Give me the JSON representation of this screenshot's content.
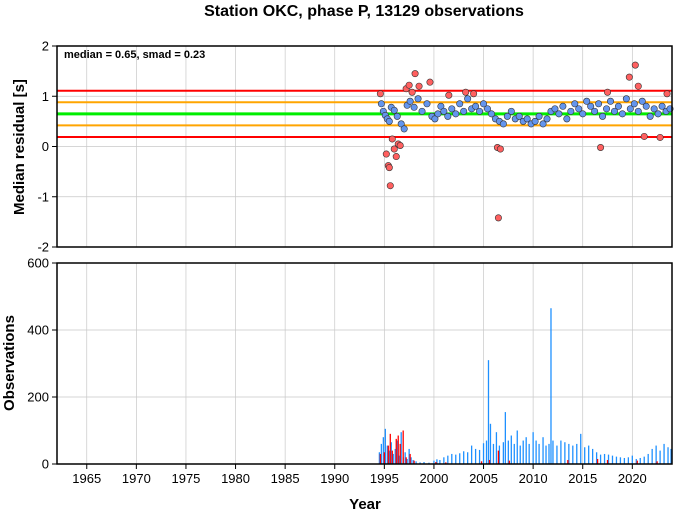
{
  "chart_data": [
    {
      "type": "scatter",
      "title": "Station OKC, phase P, 13129 observations",
      "ylabel": "Median residual [s]",
      "annotation": "median = 0.65, smad = 0.23",
      "xlim": [
        1962,
        2024
      ],
      "ylim": [
        -2,
        2
      ],
      "yticks": [
        "-2",
        "-1",
        "0",
        "1",
        "2"
      ],
      "grid": true,
      "reference_lines": [
        {
          "name": "median",
          "value": 0.65,
          "color": "#00ee00"
        },
        {
          "name": "median + 1 smad",
          "value": 0.88,
          "color": "#ffa500"
        },
        {
          "name": "median - 1 smad",
          "value": 0.42,
          "color": "#ffa500"
        },
        {
          "name": "median + 2 smad",
          "value": 1.11,
          "color": "#ff0000"
        },
        {
          "name": "median - 2 smad",
          "value": 0.19,
          "color": "#ff0000"
        }
      ],
      "series": [
        {
          "color": "#6495ed",
          "points": [
            [
              1994.7,
              0.85
            ],
            [
              1994.9,
              0.7
            ],
            [
              1995.1,
              0.62
            ],
            [
              1995.3,
              0.55
            ],
            [
              1995.5,
              0.5
            ],
            [
              1995.7,
              0.78
            ],
            [
              1996.0,
              0.72
            ],
            [
              1996.3,
              0.6
            ],
            [
              1996.7,
              0.45
            ],
            [
              1997.0,
              0.35
            ],
            [
              1997.3,
              0.82
            ],
            [
              1997.6,
              0.9
            ],
            [
              1998.0,
              0.78
            ],
            [
              1998.4,
              0.95
            ],
            [
              1998.8,
              0.7
            ],
            [
              1999.3,
              0.85
            ],
            [
              1999.8,
              0.6
            ],
            [
              2000.1,
              0.55
            ],
            [
              2000.4,
              0.65
            ],
            [
              2000.7,
              0.8
            ],
            [
              2001.0,
              0.7
            ],
            [
              2001.4,
              0.6
            ],
            [
              2001.8,
              0.75
            ],
            [
              2002.2,
              0.65
            ],
            [
              2002.6,
              0.85
            ],
            [
              2003.0,
              0.7
            ],
            [
              2003.4,
              0.95
            ],
            [
              2003.8,
              0.75
            ],
            [
              2004.2,
              0.8
            ],
            [
              2004.6,
              0.7
            ],
            [
              2005.0,
              0.85
            ],
            [
              2005.4,
              0.75
            ],
            [
              2005.8,
              0.65
            ],
            [
              2006.2,
              0.55
            ],
            [
              2006.6,
              0.5
            ],
            [
              2007.0,
              0.45
            ],
            [
              2007.4,
              0.6
            ],
            [
              2007.8,
              0.7
            ],
            [
              2008.2,
              0.55
            ],
            [
              2008.6,
              0.6
            ],
            [
              2009.0,
              0.5
            ],
            [
              2009.4,
              0.55
            ],
            [
              2009.8,
              0.45
            ],
            [
              2010.2,
              0.5
            ],
            [
              2010.6,
              0.6
            ],
            [
              2011.0,
              0.45
            ],
            [
              2011.4,
              0.55
            ],
            [
              2011.8,
              0.7
            ],
            [
              2012.2,
              0.75
            ],
            [
              2012.6,
              0.65
            ],
            [
              2013.0,
              0.8
            ],
            [
              2013.4,
              0.55
            ],
            [
              2013.8,
              0.7
            ],
            [
              2014.2,
              0.85
            ],
            [
              2014.6,
              0.75
            ],
            [
              2015.0,
              0.65
            ],
            [
              2015.4,
              0.9
            ],
            [
              2015.8,
              0.8
            ],
            [
              2016.2,
              0.7
            ],
            [
              2016.6,
              0.85
            ],
            [
              2017.0,
              0.6
            ],
            [
              2017.4,
              0.75
            ],
            [
              2017.8,
              0.9
            ],
            [
              2018.2,
              0.7
            ],
            [
              2018.6,
              0.8
            ],
            [
              2019.0,
              0.65
            ],
            [
              2019.4,
              0.95
            ],
            [
              2019.8,
              0.75
            ],
            [
              2020.2,
              0.85
            ],
            [
              2020.6,
              0.7
            ],
            [
              2021.0,
              0.9
            ],
            [
              2021.4,
              0.8
            ],
            [
              2021.8,
              0.6
            ],
            [
              2022.2,
              0.75
            ],
            [
              2022.6,
              0.65
            ],
            [
              2023.0,
              0.8
            ],
            [
              2023.4,
              0.7
            ],
            [
              2023.8,
              0.75
            ]
          ]
        },
        {
          "color": "#ff6060",
          "points": [
            [
              1994.6,
              1.05
            ],
            [
              1995.2,
              -0.15
            ],
            [
              1995.4,
              -0.38
            ],
            [
              1995.5,
              -0.42
            ],
            [
              1995.6,
              -0.78
            ],
            [
              1995.8,
              0.15
            ],
            [
              1996.0,
              -0.05
            ],
            [
              1996.2,
              -0.2
            ],
            [
              1996.4,
              0.05
            ],
            [
              1996.6,
              0.02
            ],
            [
              1997.2,
              1.15
            ],
            [
              1997.5,
              1.22
            ],
            [
              1997.8,
              1.08
            ],
            [
              1998.1,
              1.45
            ],
            [
              1998.5,
              1.2
            ],
            [
              1999.6,
              1.28
            ],
            [
              2001.5,
              1.02
            ],
            [
              2003.2,
              1.08
            ],
            [
              2004.0,
              1.05
            ],
            [
              2006.4,
              -0.02
            ],
            [
              2006.5,
              -1.42
            ],
            [
              2006.7,
              -0.05
            ],
            [
              2016.8,
              -0.02
            ],
            [
              2017.5,
              1.08
            ],
            [
              2019.7,
              1.38
            ],
            [
              2020.3,
              1.62
            ],
            [
              2020.6,
              1.2
            ],
            [
              2021.2,
              0.2
            ],
            [
              2022.8,
              0.18
            ],
            [
              2023.5,
              1.05
            ]
          ]
        }
      ]
    },
    {
      "type": "bar",
      "xlabel": "Year",
      "ylabel": "Observations",
      "xlim": [
        1962,
        2024
      ],
      "ylim": [
        0,
        600
      ],
      "xticks": [
        "1965",
        "1970",
        "1975",
        "1980",
        "1985",
        "1990",
        "1995",
        "2000",
        "2005",
        "2010",
        "2015",
        "2020"
      ],
      "yticks": [
        "0",
        "200",
        "400",
        "600"
      ],
      "grid": true,
      "series": [
        {
          "color": "#1e90ff",
          "bars": [
            [
              1994.5,
              35
            ],
            [
              1994.7,
              60
            ],
            [
              1994.9,
              80
            ],
            [
              1995.1,
              105
            ],
            [
              1995.3,
              55
            ],
            [
              1995.5,
              40
            ],
            [
              1995.7,
              65
            ],
            [
              1995.9,
              30
            ],
            [
              1996.1,
              45
            ],
            [
              1996.3,
              70
            ],
            [
              1996.5,
              25
            ],
            [
              1996.7,
              95
            ],
            [
              1996.9,
              20
            ],
            [
              1997.1,
              35
            ],
            [
              1997.3,
              15
            ],
            [
              1997.5,
              45
            ],
            [
              1997.7,
              20
            ],
            [
              1997.9,
              12
            ],
            [
              1998.2,
              8
            ],
            [
              1998.6,
              5
            ],
            [
              1999.0,
              6
            ],
            [
              1999.5,
              4
            ],
            [
              2000.0,
              10
            ],
            [
              2000.3,
              14
            ],
            [
              2000.6,
              12
            ],
            [
              2001.0,
              20
            ],
            [
              2001.4,
              25
            ],
            [
              2001.8,
              30
            ],
            [
              2002.2,
              28
            ],
            [
              2002.6,
              32
            ],
            [
              2003.0,
              38
            ],
            [
              2003.4,
              35
            ],
            [
              2003.8,
              55
            ],
            [
              2004.2,
              45
            ],
            [
              2004.6,
              42
            ],
            [
              2005.0,
              62
            ],
            [
              2005.3,
              70
            ],
            [
              2005.5,
              310
            ],
            [
              2005.7,
              120
            ],
            [
              2006.0,
              60
            ],
            [
              2006.3,
              95
            ],
            [
              2006.6,
              55
            ],
            [
              2007.0,
              65
            ],
            [
              2007.2,
              155
            ],
            [
              2007.5,
              70
            ],
            [
              2007.8,
              85
            ],
            [
              2008.1,
              60
            ],
            [
              2008.4,
              100
            ],
            [
              2008.7,
              55
            ],
            [
              2009.0,
              70
            ],
            [
              2009.3,
              80
            ],
            [
              2009.6,
              60
            ],
            [
              2010.0,
              95
            ],
            [
              2010.3,
              70
            ],
            [
              2010.6,
              60
            ],
            [
              2011.0,
              80
            ],
            [
              2011.3,
              55
            ],
            [
              2011.6,
              60
            ],
            [
              2011.8,
              465
            ],
            [
              2012.0,
              70
            ],
            [
              2012.4,
              55
            ],
            [
              2012.8,
              70
            ],
            [
              2013.2,
              65
            ],
            [
              2013.6,
              60
            ],
            [
              2014.0,
              55
            ],
            [
              2014.4,
              60
            ],
            [
              2014.8,
              90
            ],
            [
              2015.2,
              50
            ],
            [
              2015.6,
              55
            ],
            [
              2016.0,
              45
            ],
            [
              2016.4,
              35
            ],
            [
              2016.8,
              28
            ],
            [
              2017.2,
              30
            ],
            [
              2017.6,
              28
            ],
            [
              2018.0,
              25
            ],
            [
              2018.4,
              22
            ],
            [
              2018.8,
              20
            ],
            [
              2019.2,
              18
            ],
            [
              2019.6,
              20
            ],
            [
              2020.0,
              25
            ],
            [
              2020.4,
              15
            ],
            [
              2020.8,
              18
            ],
            [
              2021.2,
              22
            ],
            [
              2021.6,
              30
            ],
            [
              2022.0,
              45
            ],
            [
              2022.4,
              55
            ],
            [
              2022.8,
              40
            ],
            [
              2023.2,
              60
            ],
            [
              2023.6,
              50
            ],
            [
              2023.9,
              45
            ]
          ]
        },
        {
          "color": "#ff0000",
          "bars": [
            [
              1994.6,
              30
            ],
            [
              1995.0,
              35
            ],
            [
              1995.4,
              55
            ],
            [
              1995.6,
              90
            ],
            [
              1995.8,
              40
            ],
            [
              1996.2,
              75
            ],
            [
              1996.4,
              85
            ],
            [
              1996.6,
              60
            ],
            [
              1996.9,
              100
            ],
            [
              1997.2,
              20
            ],
            [
              1997.6,
              30
            ],
            [
              1998.0,
              10
            ],
            [
              2000.2,
              6
            ],
            [
              2001.2,
              5
            ],
            [
              2004.8,
              8
            ],
            [
              2005.6,
              12
            ],
            [
              2006.5,
              40
            ],
            [
              2007.6,
              10
            ],
            [
              2013.5,
              12
            ],
            [
              2016.5,
              15
            ],
            [
              2017.5,
              12
            ],
            [
              2020.5,
              10
            ],
            [
              2022.5,
              8
            ]
          ]
        }
      ]
    }
  ]
}
